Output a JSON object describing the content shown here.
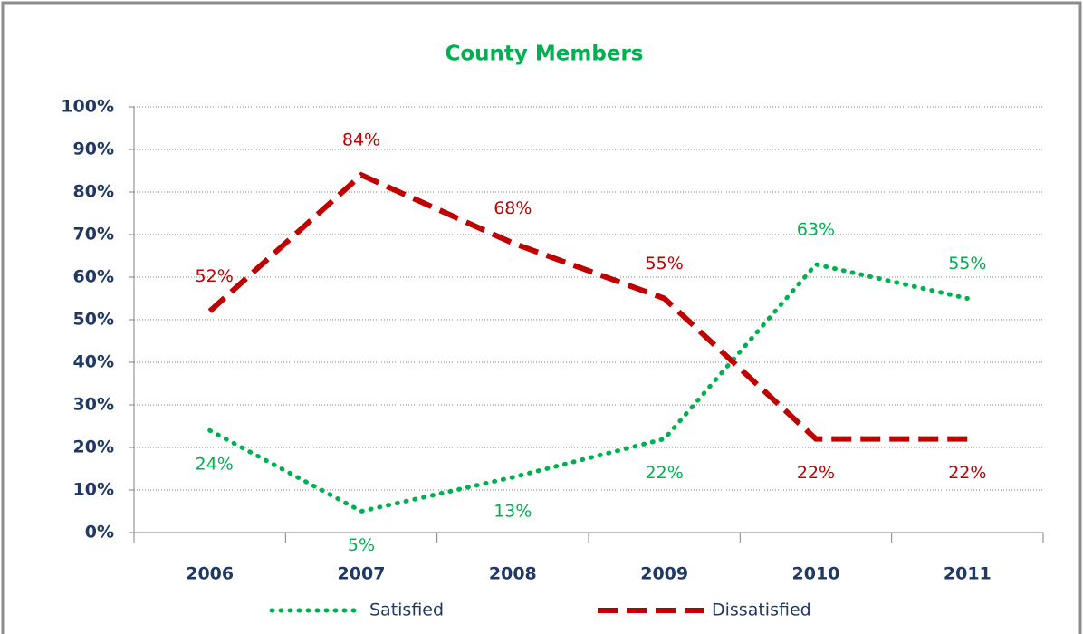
{
  "chart_data": {
    "type": "line",
    "title": "County Members",
    "title_color": "#00b050",
    "categories": [
      "2006",
      "2007",
      "2008",
      "2009",
      "2010",
      "2011"
    ],
    "series": [
      {
        "name": "Satisfied",
        "color": "#00b050",
        "style": "dotted",
        "values": [
          24,
          5,
          13,
          22,
          63,
          55
        ],
        "value_labels": [
          "24%",
          "5%",
          "13%",
          "22%",
          "63%",
          "55%"
        ]
      },
      {
        "name": "Dissatisfied",
        "color": "#c00000",
        "style": "dashed",
        "values": [
          52,
          84,
          68,
          55,
          22,
          22
        ],
        "value_labels": [
          "52%",
          "84%",
          "68%",
          "55%",
          "22%",
          "22%"
        ]
      }
    ],
    "ylim": [
      0,
      100
    ],
    "yticks": [
      {
        "value": 0,
        "label": "0%"
      },
      {
        "value": 10,
        "label": "10%"
      },
      {
        "value": 20,
        "label": "20%"
      },
      {
        "value": 30,
        "label": "30%"
      },
      {
        "value": 40,
        "label": "40%"
      },
      {
        "value": 50,
        "label": "50%"
      },
      {
        "value": 60,
        "label": "60%"
      },
      {
        "value": 70,
        "label": "70%"
      },
      {
        "value": 80,
        "label": "80%"
      },
      {
        "value": 90,
        "label": "90%"
      },
      {
        "value": 100,
        "label": "100%"
      }
    ],
    "grid": true,
    "legend": "bottom"
  }
}
